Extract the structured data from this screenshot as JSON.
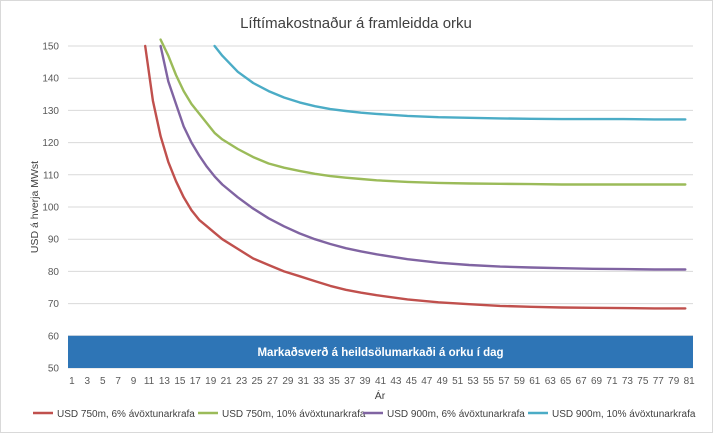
{
  "chart_data": {
    "type": "line",
    "title": "Líftímakostnaður á framleidda orku",
    "xlabel": "Ár",
    "ylabel": "USD á hverja MWst",
    "ylim": [
      50,
      150
    ],
    "yticks": [
      50,
      60,
      70,
      80,
      90,
      100,
      110,
      120,
      130,
      140,
      150
    ],
    "xlim": [
      1,
      82
    ],
    "xticks": [
      1,
      3,
      5,
      7,
      9,
      11,
      13,
      15,
      17,
      19,
      21,
      23,
      25,
      27,
      29,
      31,
      33,
      35,
      37,
      39,
      41,
      43,
      45,
      47,
      49,
      51,
      53,
      55,
      57,
      59,
      61,
      63,
      65,
      67,
      69,
      71,
      73,
      75,
      77,
      79,
      81
    ],
    "grid": true,
    "legend_position": "bottom",
    "band": {
      "from": 50,
      "to": 60,
      "color": "#2e75b6",
      "label": "Markaðsverð á heildsölumarkaði á orku í dag"
    },
    "x": [
      11,
      12,
      13,
      14,
      15,
      16,
      17,
      18,
      19,
      20,
      21,
      23,
      25,
      27,
      29,
      31,
      33,
      35,
      37,
      39,
      41,
      45,
      49,
      53,
      57,
      61,
      65,
      69,
      73,
      77,
      81
    ],
    "series": [
      {
        "name": "USD 750m, 6% ávöxtunarkrafa",
        "color": "#c0504d",
        "values": [
          150,
          133,
          122,
          114,
          108,
          103,
          99,
          96,
          94,
          92,
          90,
          87,
          84,
          82,
          80,
          78.5,
          77,
          75.5,
          74.3,
          73.4,
          72.6,
          71.3,
          70.4,
          69.8,
          69.3,
          69.0,
          68.8,
          68.7,
          68.6,
          68.5,
          68.5
        ]
      },
      {
        "name": "USD 750m, 10% ávöxtunarkrafa",
        "color": "#9bbb59",
        "values": [
          null,
          null,
          152,
          147,
          141,
          136,
          132,
          129,
          126,
          123,
          121,
          118,
          115.5,
          113.5,
          112.2,
          111.2,
          110.3,
          109.6,
          109.1,
          108.7,
          108.3,
          107.8,
          107.5,
          107.3,
          107.2,
          107.1,
          107.0,
          107.0,
          107.0,
          107.0,
          107.0
        ]
      },
      {
        "name": "USD 900m, 6% ávöxtunarkrafa",
        "color": "#8064a2",
        "values": [
          null,
          null,
          150,
          139,
          132,
          125,
          120,
          116,
          112.5,
          109.5,
          107,
          103,
          99.5,
          96.5,
          94,
          91.8,
          90,
          88.5,
          87.2,
          86.2,
          85.3,
          83.8,
          82.7,
          82.0,
          81.5,
          81.2,
          81.0,
          80.8,
          80.7,
          80.6,
          80.6
        ]
      },
      {
        "name": "USD 900m, 10% ávöxtunarkrafa",
        "color": "#4bacc6",
        "values": [
          null,
          null,
          null,
          null,
          null,
          null,
          null,
          null,
          null,
          150,
          147,
          142,
          138.5,
          136,
          134,
          132.5,
          131.3,
          130.4,
          129.8,
          129.3,
          128.9,
          128.3,
          127.9,
          127.7,
          127.5,
          127.4,
          127.3,
          127.3,
          127.3,
          127.2,
          127.2
        ]
      }
    ]
  }
}
